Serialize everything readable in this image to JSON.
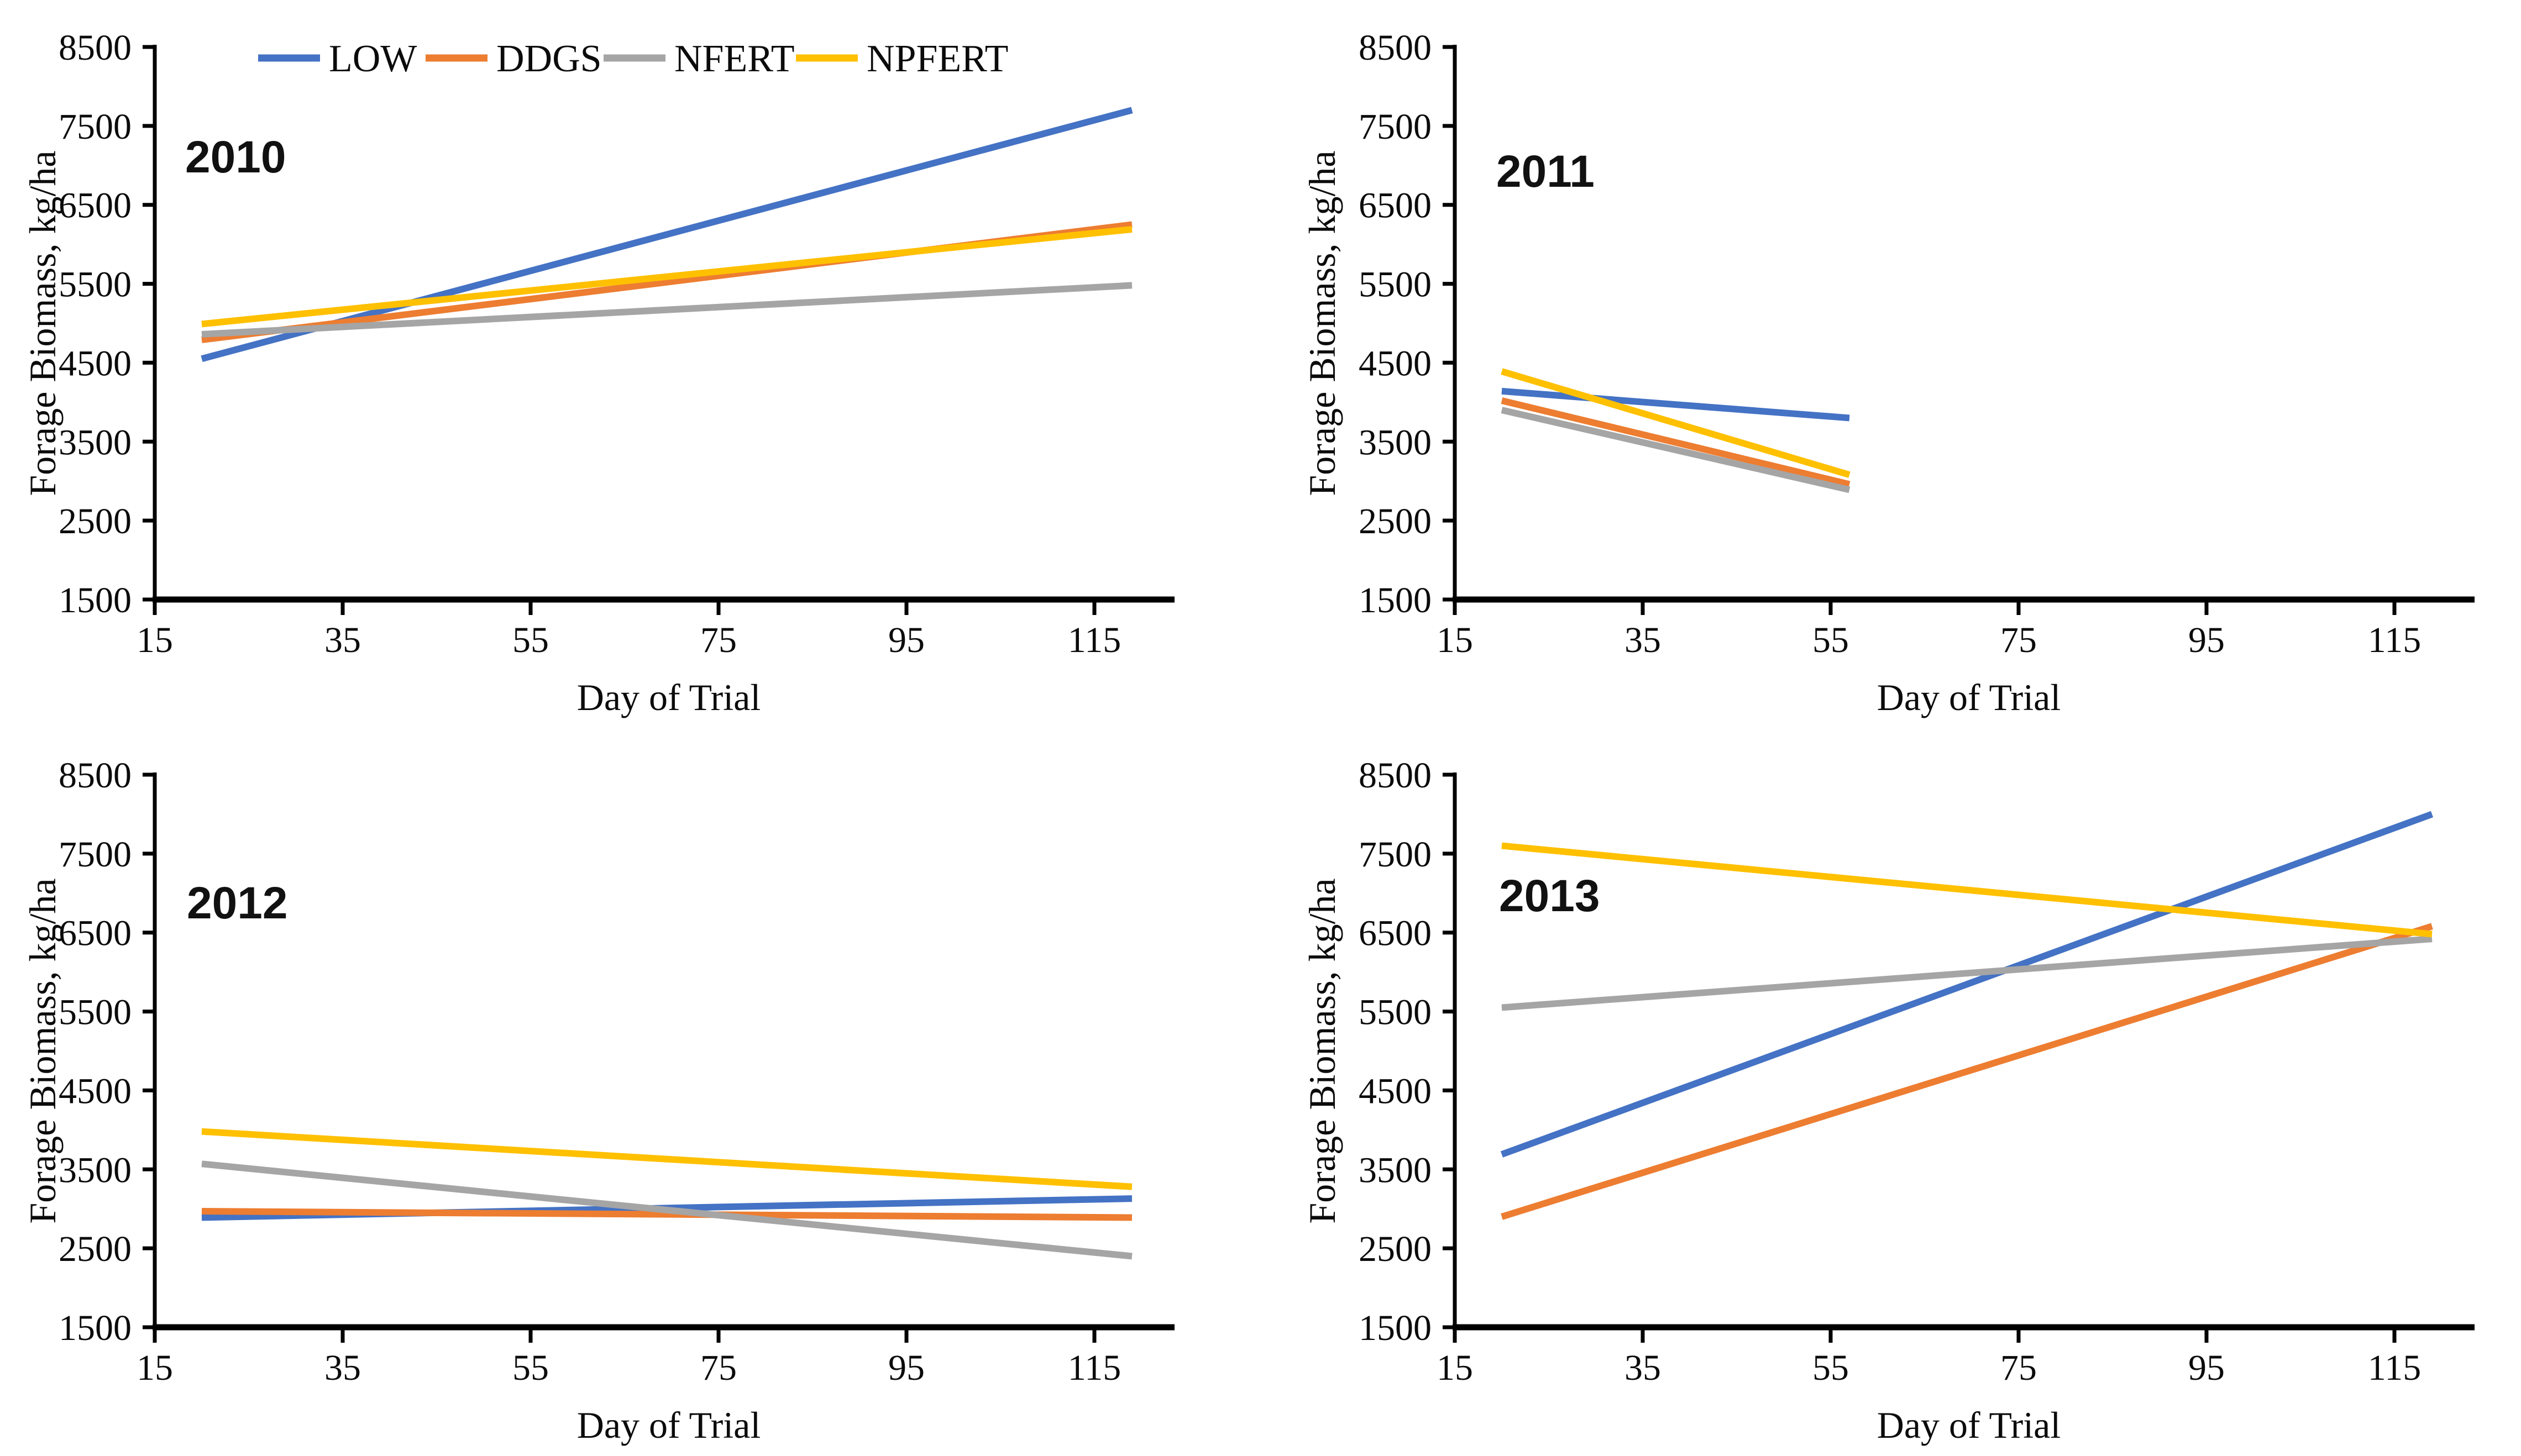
{
  "figure_background": "#ffffff",
  "axis_color": "#000000",
  "chart_data": [
    {
      "type": "line",
      "title": "2010",
      "x_label": "Day of Trial",
      "y_label": "Forage Biomass, kg/ha",
      "x_ticks": [
        15,
        35,
        55,
        75,
        95,
        115
      ],
      "y_ticks": [
        1500,
        2500,
        3500,
        4500,
        5500,
        6500,
        7500,
        8500
      ],
      "x_range": [
        15,
        124
      ],
      "y_range": [
        1500,
        8500
      ],
      "grid": "off",
      "legend_visible": true,
      "legend_position": "top",
      "series": [
        {
          "name": "LOW",
          "color": "#4472C4",
          "x": [
            20,
            119
          ],
          "y": [
            4550,
            7700
          ]
        },
        {
          "name": "DDGS",
          "color": "#ED7D31",
          "x": [
            20,
            119
          ],
          "y": [
            4790,
            6250
          ]
        },
        {
          "name": "NFERT",
          "color": "#A5A5A5",
          "x": [
            20,
            119
          ],
          "y": [
            4860,
            5480
          ]
        },
        {
          "name": "NPFERT",
          "color": "#FFC000",
          "x": [
            20,
            119
          ],
          "y": [
            4990,
            6190
          ]
        }
      ]
    },
    {
      "type": "line",
      "title": "2011",
      "x_label": "Day of Trial",
      "y_label": "Forage Biomass, kg/ha",
      "x_ticks": [
        15,
        35,
        55,
        75,
        95,
        115
      ],
      "y_ticks": [
        1500,
        2500,
        3500,
        4500,
        5500,
        6500,
        7500,
        8500
      ],
      "x_range": [
        15,
        124
      ],
      "y_range": [
        1500,
        8500
      ],
      "grid": "off",
      "legend_visible": false,
      "series": [
        {
          "name": "LOW",
          "color": "#4472C4",
          "x": [
            20,
            57
          ],
          "y": [
            4140,
            3800
          ]
        },
        {
          "name": "DDGS",
          "color": "#ED7D31",
          "x": [
            20,
            57
          ],
          "y": [
            4020,
            2960
          ]
        },
        {
          "name": "NFERT",
          "color": "#A5A5A5",
          "x": [
            20,
            57
          ],
          "y": [
            3900,
            2890
          ]
        },
        {
          "name": "NPFERT",
          "color": "#FFC000",
          "x": [
            20,
            57
          ],
          "y": [
            4390,
            3080
          ]
        }
      ]
    },
    {
      "type": "line",
      "title": "2012",
      "x_label": "Day of Trial",
      "y_label": "Forage Biomass, kg/ha",
      "x_ticks": [
        15,
        35,
        55,
        75,
        95,
        115
      ],
      "y_ticks": [
        1500,
        2500,
        3500,
        4500,
        5500,
        6500,
        7500,
        8500
      ],
      "x_range": [
        15,
        124
      ],
      "y_range": [
        1500,
        8500
      ],
      "grid": "off",
      "legend_visible": false,
      "series": [
        {
          "name": "LOW",
          "color": "#4472C4",
          "x": [
            20,
            119
          ],
          "y": [
            2890,
            3130
          ]
        },
        {
          "name": "DDGS",
          "color": "#ED7D31",
          "x": [
            20,
            119
          ],
          "y": [
            2970,
            2890
          ]
        },
        {
          "name": "NFERT",
          "color": "#A5A5A5",
          "x": [
            20,
            119
          ],
          "y": [
            3570,
            2400
          ]
        },
        {
          "name": "NPFERT",
          "color": "#FFC000",
          "x": [
            20,
            119
          ],
          "y": [
            3980,
            3280
          ]
        }
      ]
    },
    {
      "type": "line",
      "title": "2013",
      "x_label": "Day of Trial",
      "y_label": "Forage Biomass, kg/ha",
      "x_ticks": [
        15,
        35,
        55,
        75,
        95,
        115
      ],
      "y_ticks": [
        1500,
        2500,
        3500,
        4500,
        5500,
        6500,
        7500,
        8500
      ],
      "x_range": [
        15,
        124
      ],
      "y_range": [
        1500,
        8500
      ],
      "grid": "off",
      "legend_visible": false,
      "series": [
        {
          "name": "LOW",
          "color": "#4472C4",
          "x": [
            20,
            119
          ],
          "y": [
            3690,
            8000
          ]
        },
        {
          "name": "DDGS",
          "color": "#ED7D31",
          "x": [
            20,
            119
          ],
          "y": [
            2900,
            6580
          ]
        },
        {
          "name": "NFERT",
          "color": "#A5A5A5",
          "x": [
            20,
            119
          ],
          "y": [
            5550,
            6420
          ]
        },
        {
          "name": "NPFERT",
          "color": "#FFC000",
          "x": [
            20,
            119
          ],
          "y": [
            7600,
            6480
          ]
        }
      ]
    }
  ]
}
